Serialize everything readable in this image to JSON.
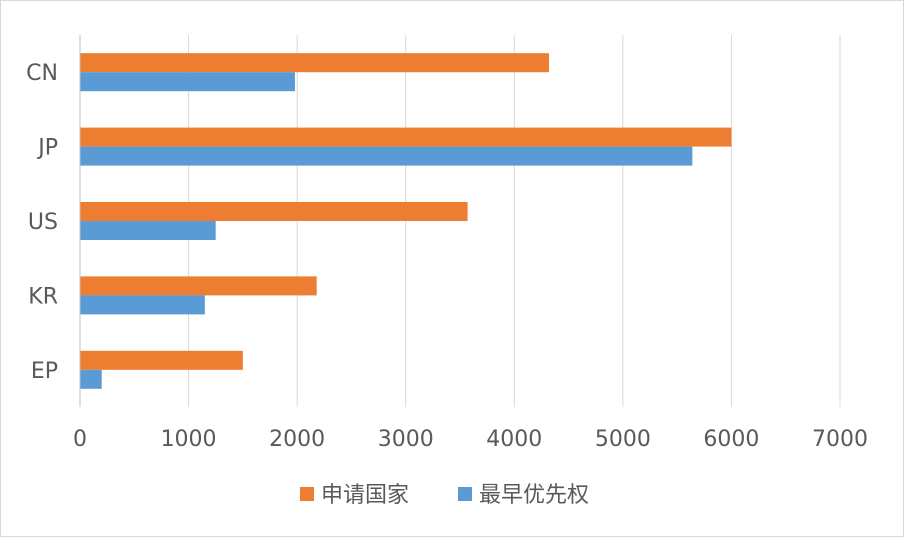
{
  "chart_data": {
    "type": "bar",
    "orientation": "horizontal",
    "categories": [
      "CN",
      "JP",
      "US",
      "KR",
      "EP"
    ],
    "series": [
      {
        "name": "申请国家",
        "color": "#ED7D31",
        "values": [
          4320,
          6000,
          3570,
          2180,
          1500
        ]
      },
      {
        "name": "最早优先权",
        "color": "#5B9BD5",
        "values": [
          1980,
          5640,
          1250,
          1150,
          200
        ]
      }
    ],
    "xlim": [
      0,
      7000
    ],
    "xticks": [
      "0",
      "1000",
      "2000",
      "3000",
      "4000",
      "5000",
      "6000",
      "7000"
    ],
    "grid": "vertical",
    "legend_position": "bottom"
  }
}
